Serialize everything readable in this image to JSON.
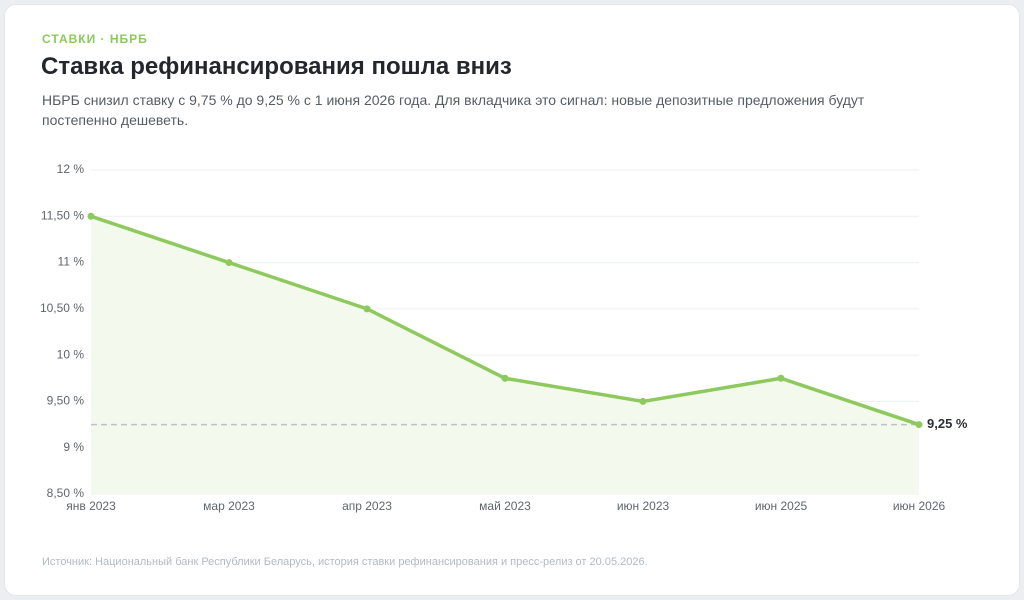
{
  "chart_data": {
    "type": "line",
    "kicker": "СТАВКИ · НБРБ",
    "title": "Ставка рефинансирования пошла вниз",
    "subtitle": "НБРБ снизил ставку с 9,75 % до 9,25 % с 1 июня 2026 года. Для вкладчика это сигнал: новые депозитные предложения будут постепенно дешеветь.",
    "source": "Источник: Национальный банк Республики Беларусь, история ставки рефинансирования и пресс-релиз от 20.05.2026.",
    "categories": [
      "янв 2023",
      "мар 2023",
      "апр 2023",
      "май 2023",
      "июн 2023",
      "июн 2025",
      "июн 2026"
    ],
    "values": [
      11.5,
      11,
      10.5,
      9.75,
      9.5,
      9.75,
      9.25
    ],
    "color": "#8dc95c",
    "area_color": "#f3f9ed",
    "reference_line": {
      "value": 9.25,
      "label": "9,25 %"
    },
    "ylim": [
      8.5,
      12
    ],
    "yticks": [
      {
        "value": 8.5,
        "label": "8,50 %"
      },
      {
        "value": 9,
        "label": "9 %"
      },
      {
        "value": 9.5,
        "label": "9,50 %"
      },
      {
        "value": 10,
        "label": "10 %"
      },
      {
        "value": 10.5,
        "label": "10,50 %"
      },
      {
        "value": 11,
        "label": "11 %"
      },
      {
        "value": 11.5,
        "label": "11,50 %"
      },
      {
        "value": 12,
        "label": "12 %"
      }
    ],
    "grid": true
  }
}
